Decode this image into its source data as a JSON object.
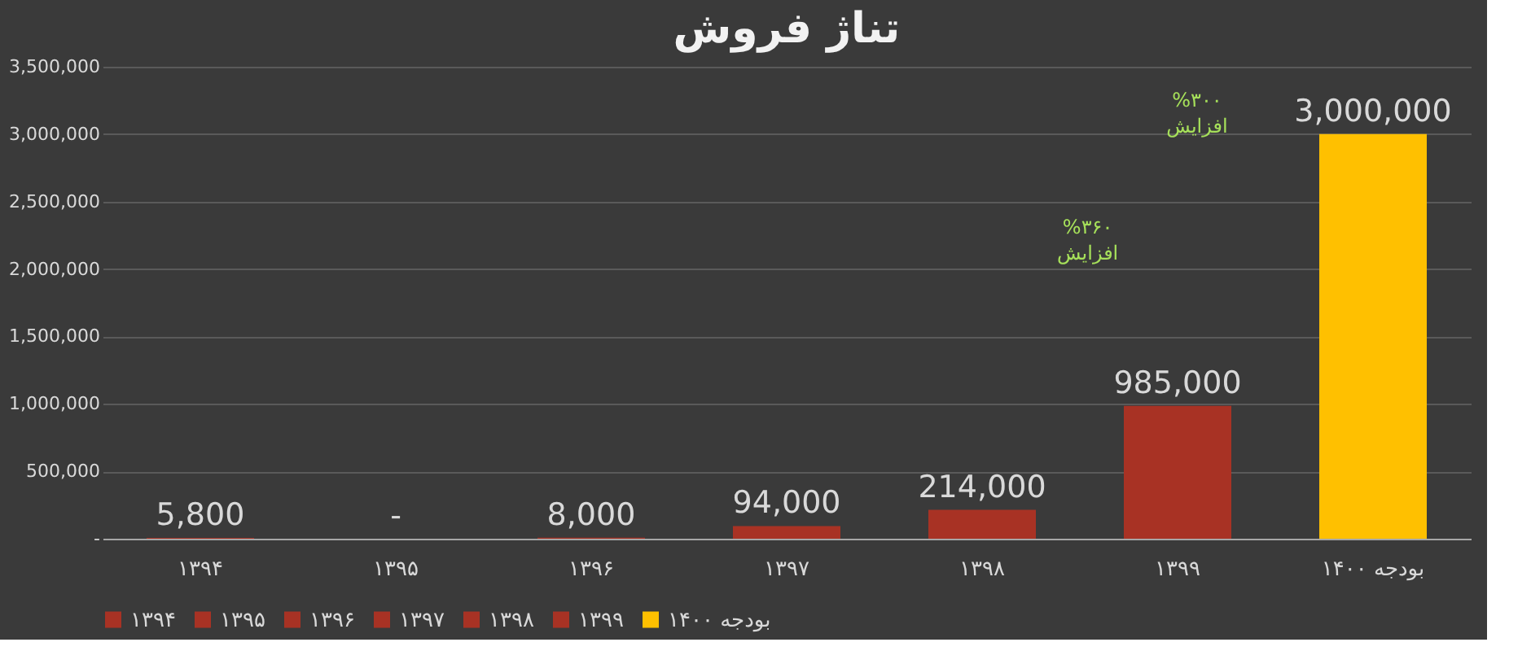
{
  "chart_data": {
    "type": "bar",
    "title": "تناژ فروش",
    "categories": [
      "۱۳۹۴",
      "۱۳۹۵",
      "۱۳۹۶",
      "۱۳۹۷",
      "۱۳۹۸",
      "۱۳۹۹",
      "بودجه ۱۴۰۰"
    ],
    "series": [
      {
        "name": "۱۳۹۴",
        "color": "#a83224",
        "values": [
          5800,
          null,
          null,
          null,
          null,
          null,
          null
        ],
        "value_labels": [
          "5,800",
          null,
          null,
          null,
          null,
          null,
          null
        ]
      },
      {
        "name": "۱۳۹۵",
        "color": "#a83224",
        "values": [
          null,
          0,
          null,
          null,
          null,
          null,
          null
        ],
        "value_labels": [
          null,
          "-",
          null,
          null,
          null,
          null,
          null
        ]
      },
      {
        "name": "۱۳۹۶",
        "color": "#a83224",
        "values": [
          null,
          null,
          8000,
          null,
          null,
          null,
          null
        ],
        "value_labels": [
          null,
          null,
          "8,000",
          null,
          null,
          null,
          null
        ]
      },
      {
        "name": "۱۳۹۷",
        "color": "#a83224",
        "values": [
          null,
          null,
          null,
          94000,
          null,
          null,
          null
        ],
        "value_labels": [
          null,
          null,
          null,
          "94,000",
          null,
          null,
          null
        ]
      },
      {
        "name": "۱۳۹۸",
        "color": "#a83224",
        "values": [
          null,
          null,
          null,
          null,
          214000,
          null,
          null
        ],
        "value_labels": [
          null,
          null,
          null,
          null,
          "214,000",
          null,
          null
        ]
      },
      {
        "name": "۱۳۹۹",
        "color": "#a83224",
        "values": [
          null,
          null,
          null,
          null,
          null,
          985000,
          null
        ],
        "value_labels": [
          null,
          null,
          null,
          null,
          null,
          "985,000",
          null
        ]
      },
      {
        "name": "بودجه ۱۴۰۰",
        "color": "#ffc000",
        "values": [
          null,
          null,
          null,
          null,
          null,
          null,
          3000000
        ],
        "value_labels": [
          null,
          null,
          null,
          null,
          null,
          null,
          "3,000,000"
        ]
      }
    ],
    "ylim": [
      0,
      3500000
    ],
    "yticks": [
      {
        "value": 0,
        "label": "-"
      },
      {
        "value": 500000,
        "label": "500,000"
      },
      {
        "value": 1000000,
        "label": "1,000,000"
      },
      {
        "value": 1500000,
        "label": "1,500,000"
      },
      {
        "value": 2000000,
        "label": "2,000,000"
      },
      {
        "value": 2500000,
        "label": "2,500,000"
      },
      {
        "value": 3000000,
        "label": "3,000,000"
      },
      {
        "value": 3500000,
        "label": "3,500,000"
      }
    ],
    "grid": "y",
    "legend": "bottom",
    "annotations": [
      "%۳۶۰\nافزایش",
      "%۳۰۰\nافزایش"
    ]
  }
}
